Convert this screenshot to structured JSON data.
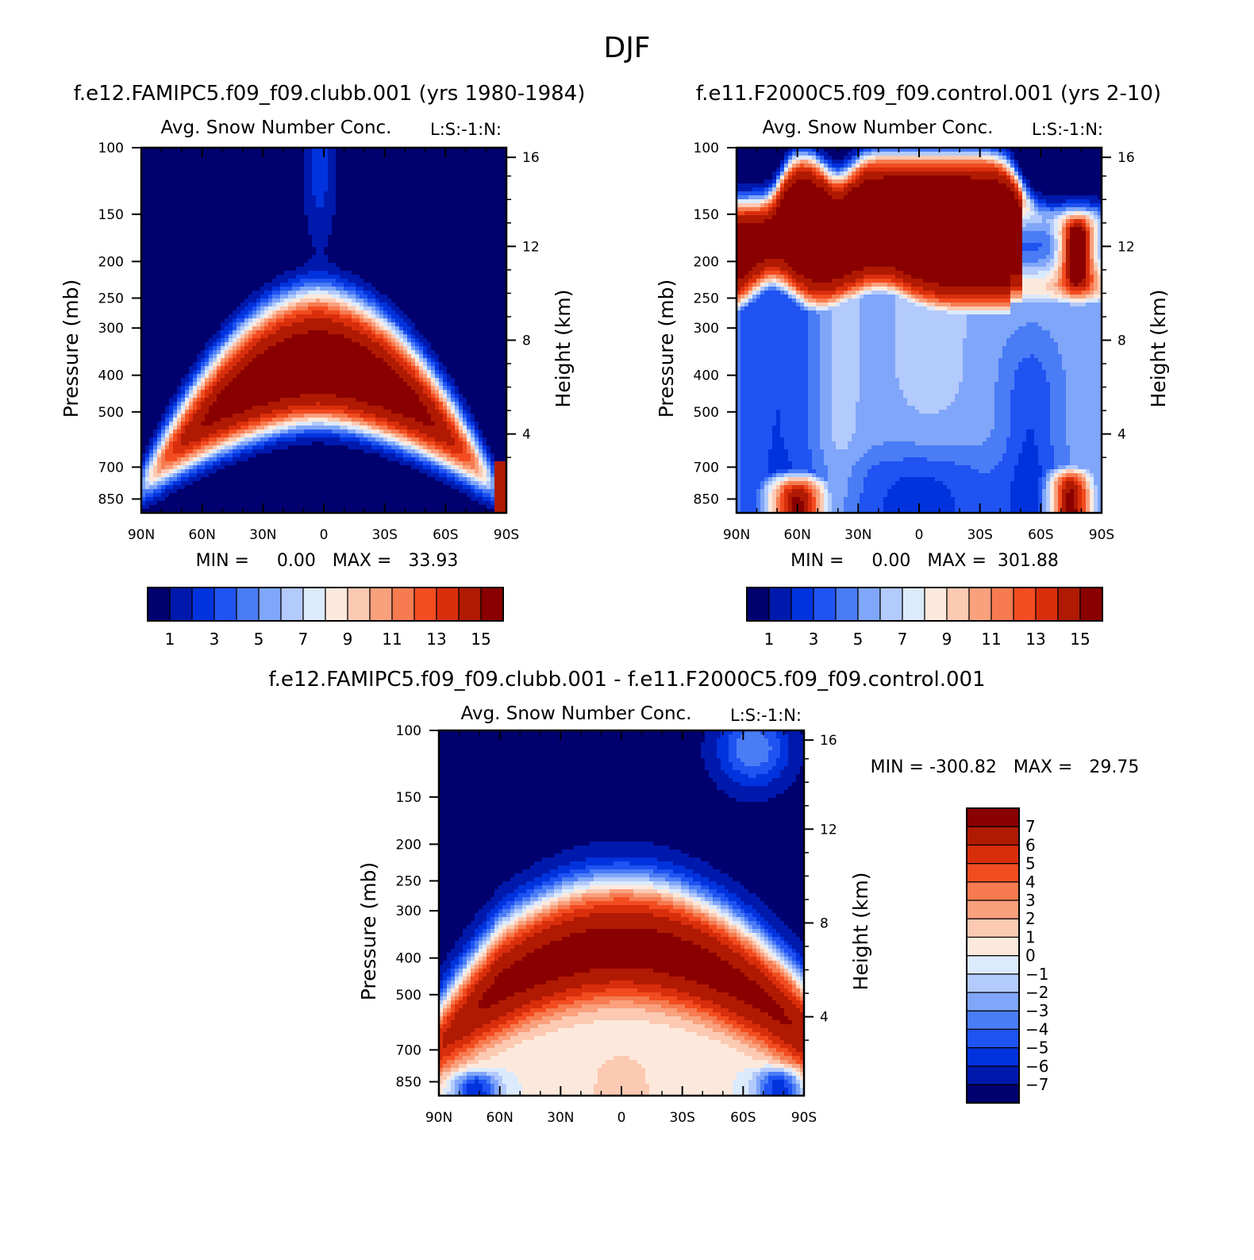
{
  "page_title": "DJF",
  "panels": [
    {
      "id": "panel1",
      "case_title": "f.e12.FAMIPC5.f09_f09.clubb.001 (yrs 1980-1984)",
      "variable_title": "Avg. Snow Number Conc.",
      "code_label": "L:S:-1:N:",
      "min_max_text": "MIN =     0.00   MAX =   33.93",
      "min": 0.0,
      "max": 33.93,
      "field": "warm_dome"
    },
    {
      "id": "panel2",
      "case_title": "f.e11.F2000C5.f09_f09.control.001 (yrs 2-10)",
      "variable_title": "Avg. Snow Number Conc.",
      "code_label": "L:S:-1:N:",
      "min_max_text": "MIN =     0.00   MAX =  301.88",
      "min": 0.0,
      "max": 301.88,
      "field": "upper_band"
    },
    {
      "id": "panel3",
      "case_title": "f.e12.FAMIPC5.f09_f09.clubb.001 - f.e11.F2000C5.f09_f09.control.001",
      "variable_title": "Avg. Snow Number Conc.",
      "code_label": "L:S:-1:N:",
      "min_max_text": "MIN = -300.82   MAX =   29.75",
      "min": -300.82,
      "max": 29.75,
      "field": "difference"
    }
  ],
  "chart_data": {
    "type": "heatmap",
    "x_axis": {
      "label": "",
      "ticks": [
        "90N",
        "60N",
        "30N",
        "0",
        "30S",
        "60S",
        "90S"
      ],
      "lat_values": [
        90,
        60,
        30,
        0,
        -30,
        -60,
        -90
      ]
    },
    "y_axis_left": {
      "label": "Pressure (mb)",
      "ticks": [
        "100",
        "150",
        "200",
        "250",
        "300",
        "400",
        "500",
        "700",
        "850"
      ],
      "values": [
        100,
        150,
        200,
        250,
        300,
        400,
        500,
        700,
        850
      ],
      "range": [
        100,
        925
      ],
      "scale": "log"
    },
    "y_axis_right": {
      "label": "Height (km)",
      "ticks": [
        "16",
        "12",
        "8",
        "4"
      ],
      "values": [
        16,
        12,
        8,
        4
      ]
    },
    "colorbar_abs": {
      "orientation": "horizontal",
      "labels": [
        "1",
        "3",
        "5",
        "7",
        "9",
        "11",
        "13",
        "15"
      ],
      "levels": [
        1,
        2,
        3,
        4,
        5,
        6,
        7,
        8,
        9,
        10,
        11,
        12,
        13,
        14,
        15
      ],
      "colors": [
        "#00006e",
        "#0019ad",
        "#0033dd",
        "#1f53f2",
        "#4a7cf6",
        "#80a6f9",
        "#b3cafc",
        "#dceafd",
        "#fde9dc",
        "#fcc9b2",
        "#f9a07d",
        "#f77b50",
        "#f24c20",
        "#d92e0c",
        "#b01a02",
        "#8a0000"
      ]
    },
    "colorbar_diff": {
      "orientation": "vertical",
      "labels": [
        "7",
        "6",
        "5",
        "4",
        "3",
        "2",
        "1",
        "0",
        "−1",
        "−2",
        "−3",
        "−4",
        "−5",
        "−6",
        "−7"
      ],
      "levels": [
        -7,
        -6,
        -5,
        -4,
        -3,
        -2,
        -1,
        0,
        1,
        2,
        3,
        4,
        5,
        6,
        7
      ],
      "colors": [
        "#00006e",
        "#0019ad",
        "#0033dd",
        "#1f53f2",
        "#4a7cf6",
        "#80a6f9",
        "#b3cafc",
        "#dceafd",
        "#fde9dc",
        "#fcc9b2",
        "#f9a07d",
        "#f77b50",
        "#f24c20",
        "#d92e0c",
        "#b01a02",
        "#8a0000"
      ]
    }
  }
}
